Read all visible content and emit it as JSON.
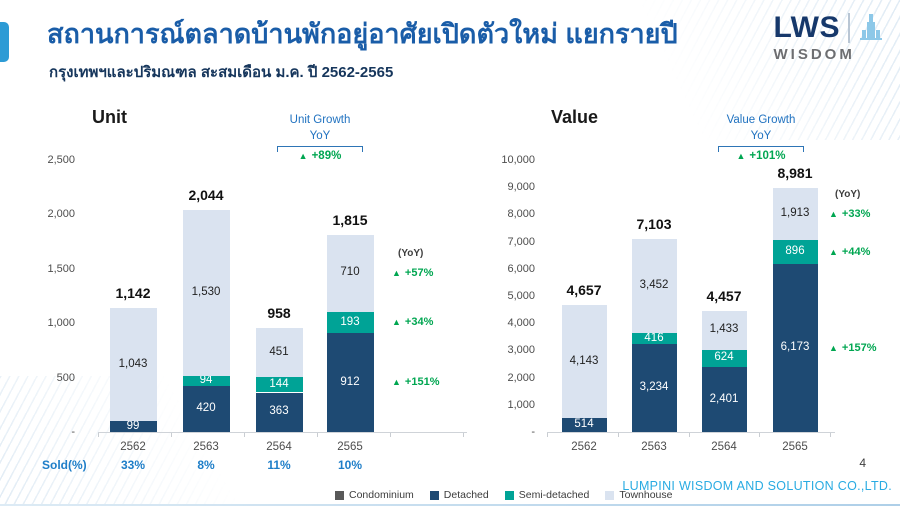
{
  "header": {
    "title": "สถานการณ์ตลาดบ้านพักอยู่อาศัยเปิดตัวใหม่ แยกรายปี",
    "subtitle": "กรุงเทพฯและปริมณฑล สะสมเดือน ม.ค. ปี 2562-2565",
    "logo": {
      "name": "LWS",
      "sub": "WISDOM"
    }
  },
  "footer": {
    "company": "LUMPINI WISDOM AND SOLUTION CO.,LTD.",
    "page_number": "4"
  },
  "colors": {
    "accent_blue": "#2D9BD5",
    "title_blue": "#1A5DA8",
    "growth_green": "#00A651",
    "growth_label_blue": "#2072C0",
    "sold_blue": "#1E7EC8",
    "footer_blue": "#29ABE2"
  },
  "legend": [
    {
      "label": "Condominium",
      "color": "#595959"
    },
    {
      "label": "Detached",
      "color": "#1E4A73"
    },
    {
      "label": "Semi-detached",
      "color": "#00A396"
    },
    {
      "label": "Townhouse",
      "color": "#DAE3F0"
    }
  ],
  "chart_data": [
    {
      "type": "bar",
      "stacked": true,
      "title": "Unit",
      "growth_box": {
        "line1": "Unit Growth",
        "line2": "YoY",
        "value": "+89%"
      },
      "yoy_column_label": "(YoY)",
      "categories": [
        "2562",
        "2563",
        "2564",
        "2565"
      ],
      "series": [
        {
          "name": "Detached",
          "color": "#1E4A73",
          "text": "#ffffff",
          "values": [
            99,
            420,
            363,
            912
          ]
        },
        {
          "name": "Semi-detached",
          "color": "#00A396",
          "text": "#ffffff",
          "values": [
            0,
            94,
            144,
            193
          ]
        },
        {
          "name": "Townhouse",
          "color": "#DAE3F0",
          "text": "#1f1f1f",
          "values": [
            1043,
            1530,
            451,
            710
          ]
        }
      ],
      "totals": [
        1142,
        2044,
        958,
        1815
      ],
      "segment_growth": [
        {
          "series": "Townhouse",
          "value": "+57%"
        },
        {
          "series": "Semi-detached",
          "value": "+34%"
        },
        {
          "series": "Detached",
          "value": "+151%"
        }
      ],
      "ylim": [
        0,
        2500
      ],
      "yticks": [
        "2,500",
        "2,000",
        "1,500",
        "1,000",
        "500",
        "-"
      ],
      "grid": false,
      "sold_row": {
        "label": "Sold(%)",
        "values": [
          "33%",
          "8%",
          "11%",
          "10%"
        ]
      }
    },
    {
      "type": "bar",
      "stacked": true,
      "title": "Value",
      "growth_box": {
        "line1": "Value Growth",
        "line2": "YoY",
        "value": "+101%"
      },
      "yoy_column_label": "(YoY)",
      "categories": [
        "2562",
        "2563",
        "2564",
        "2565"
      ],
      "series": [
        {
          "name": "Detached",
          "color": "#1E4A73",
          "text": "#ffffff",
          "values": [
            514,
            3234,
            2401,
            6173
          ]
        },
        {
          "name": "Semi-detached",
          "color": "#00A396",
          "text": "#ffffff",
          "values": [
            0,
            416,
            624,
            896
          ]
        },
        {
          "name": "Townhouse",
          "color": "#DAE3F0",
          "text": "#1f1f1f",
          "values": [
            4143,
            3452,
            1433,
            1913
          ]
        }
      ],
      "totals": [
        4657,
        7103,
        4457,
        8981
      ],
      "segment_growth": [
        {
          "series": "Townhouse",
          "value": "+33%"
        },
        {
          "series": "Semi-detached",
          "value": "+44%"
        },
        {
          "series": "Detached",
          "value": "+157%"
        }
      ],
      "ylim": [
        0,
        10000
      ],
      "yticks": [
        "10,000",
        "9,000",
        "8,000",
        "7,000",
        "6,000",
        "5,000",
        "4,000",
        "3,000",
        "2,000",
        "1,000",
        "-"
      ],
      "grid": false
    }
  ]
}
